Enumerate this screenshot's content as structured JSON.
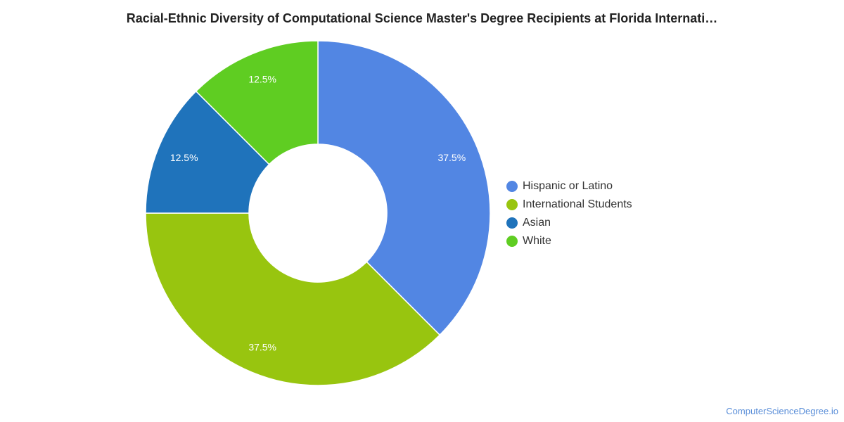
{
  "chart_data": {
    "type": "pie",
    "title": "Racial-Ethnic Diversity of Computational Science Master's Degree Recipients at Florida Internati…",
    "donut": true,
    "slices": [
      {
        "label": "Hispanic or Latino",
        "value": 37.5,
        "value_label": "37.5%",
        "color": "#5286e3"
      },
      {
        "label": "International Students",
        "value": 37.5,
        "value_label": "37.5%",
        "color": "#98c50f"
      },
      {
        "label": "Asian",
        "value": 12.5,
        "value_label": "12.5%",
        "color": "#1f73bb"
      },
      {
        "label": "White",
        "value": 12.5,
        "value_label": "12.5%",
        "color": "#5fcd22"
      }
    ],
    "legend_position": "right"
  },
  "footer": {
    "source": "ComputerScienceDegree.io"
  }
}
